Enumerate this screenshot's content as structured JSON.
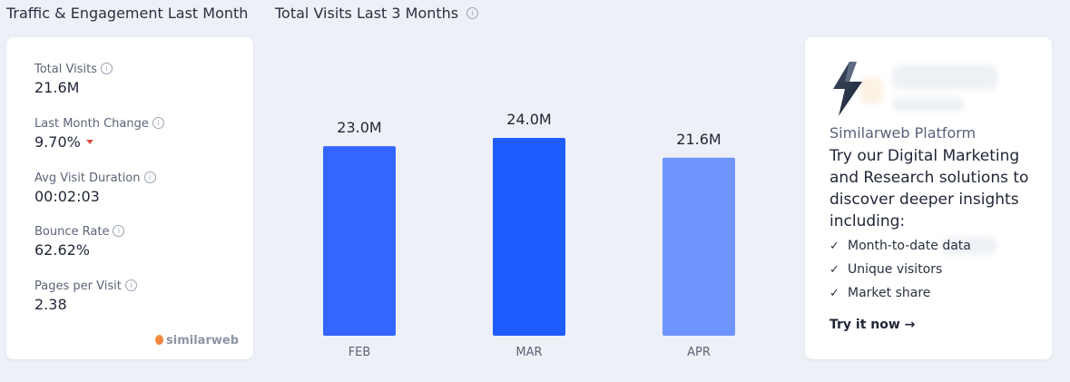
{
  "sections": {
    "traffic_title": "Traffic & Engagement Last Month",
    "visits_title": "Total Visits Last 3 Months"
  },
  "metrics": [
    {
      "label": "Total Visits",
      "value": "21.6M"
    },
    {
      "label": "Last Month Change",
      "value": "9.70%",
      "trend": "down"
    },
    {
      "label": "Avg Visit Duration",
      "value": "00:02:03"
    },
    {
      "label": "Bounce Rate",
      "value": "62.62%"
    },
    {
      "label": "Pages per Visit",
      "value": "2.38"
    }
  ],
  "logo": {
    "text": "similarweb"
  },
  "chart_data": {
    "type": "bar",
    "title": "Total Visits Last 3 Months",
    "categories": [
      "FEB",
      "MAR",
      "APR"
    ],
    "values": [
      23.0,
      24.0,
      21.6
    ],
    "value_labels": [
      "23.0M",
      "24.0M",
      "21.6M"
    ],
    "colors": [
      "#3366ff",
      "#1f5cff",
      "#6f95ff"
    ],
    "ylim": [
      0,
      24.0
    ],
    "grid": false
  },
  "promo": {
    "brand": "Similarweb Platform",
    "text": "Try our Digital Marketing and Research solutions to discover deeper insights including:",
    "items": [
      "Month-to-date data",
      "Unique visitors",
      "Market share"
    ],
    "cta": "Try it now →"
  },
  "icons": {
    "info": "info-icon",
    "check": "check-icon",
    "bolt": "lightning-bolt-icon",
    "down": "down-arrow-icon"
  }
}
